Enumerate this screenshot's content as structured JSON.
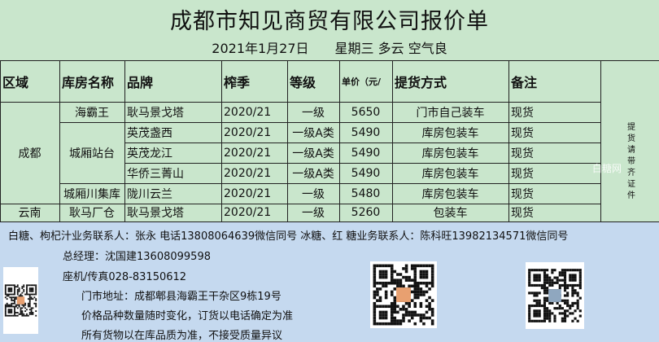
{
  "title": "成都市知见商贸有限公司报价单",
  "subtitle": "2021年1月27日　　星期三  多云  空气良",
  "headers": [
    "区域",
    "库房名称",
    "品牌",
    "榨季",
    "等级",
    "单价（元/",
    "提货方式",
    "备注"
  ],
  "regions": [
    "成都",
    "云南"
  ],
  "warehouses": [
    "海霸王",
    "城厢站台",
    "城厢川集库",
    "耿马厂仓"
  ],
  "rows": [
    {
      "brand": "耿马景戈塔",
      "season": "2020/21",
      "grade": "一级",
      "price": "5650",
      "method": "门市自己装车",
      "note": "现货"
    },
    {
      "brand": "英茂盏西",
      "season": "2020/21",
      "grade": "一级A类",
      "price": "5490",
      "method": "库房包装车",
      "note": "现货"
    },
    {
      "brand": "英茂龙江",
      "season": "2020/21",
      "grade": "一级A类",
      "price": "5490",
      "method": "库房包装车",
      "note": "现货"
    },
    {
      "brand": "华侨三菁山",
      "season": "2020/21",
      "grade": "一级A类",
      "price": "5490",
      "method": "库房包装车",
      "note": "现货"
    },
    {
      "brand": "陇川云兰",
      "season": "2020/21",
      "grade": "一级",
      "price": "5480",
      "method": "库房包装车",
      "note": "现货"
    },
    {
      "brand": "耿马景戈塔",
      "season": "2020/21",
      "grade": "一级",
      "price": "5260",
      "method": "包装车",
      "note": "现货"
    }
  ],
  "side_note": "提货请带齐证件",
  "watermark": "白糖网",
  "footer": {
    "contacts": "白糖、枸杞汁业务联系人：张永  电话13808064639微信同号   冰糖、红 糖业务联系人：陈科旺13982134571微信同号",
    "manager": "总经理：沈国建13608099598",
    "phone": "座机/传真028-83150612",
    "address": "门市地址：成都郫县海霸王干杂区9栋19号",
    "notice1": "价格品种数量随时变化，订货以电话确定为准",
    "notice2": "所有货物以在库品质为准，不接受质量异议"
  },
  "colors": {
    "table_bg": "#c9e6cc",
    "footer_bg": "#c5d9ef"
  }
}
